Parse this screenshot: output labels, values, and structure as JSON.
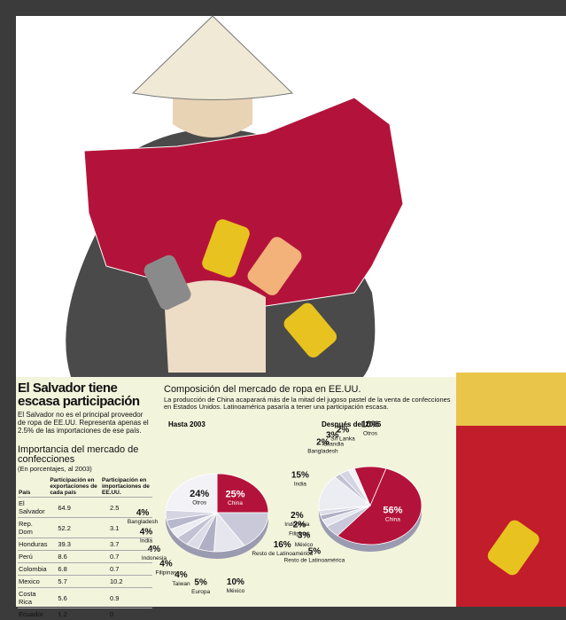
{
  "sidebar": {
    "title": "El Salvador tiene escasa participación",
    "text": "El Salvador no es el principal proveedor de ropa de EE.UU. Representa apenas el 2.5% de las importaciones de ese país.",
    "table_title": "Importancia del mercado de confecciones",
    "table_note": "(En porcentajes, al 2003)"
  },
  "table": {
    "header": [
      "País",
      "Participación en exportaciones de cada país",
      "Participación en importaciones de EE.UU."
    ],
    "rows": [
      [
        "El Salvador",
        64.9,
        2.5
      ],
      [
        "Rep. Dom",
        52.2,
        3.1
      ],
      [
        "Honduras",
        39.3,
        3.7
      ],
      [
        "Perú",
        8.6,
        0.7
      ],
      [
        "Colombia",
        6.8,
        0.7
      ],
      [
        "Mexico",
        5.7,
        10.2
      ],
      [
        "Costa Rica",
        5.6,
        0.9
      ],
      [
        "Ecuador",
        1.2,
        0
      ]
    ]
  },
  "main": {
    "title": "Composición del mercado de ropa en EE.UU.",
    "text": "La producción de China acaparará más de la mitad del jugoso pastel de la venta de confecciones en Estados Unidos. Latinoamérica pasaría a tener una participación escasa."
  },
  "chart_data": [
    {
      "type": "pie",
      "title": "Hasta 2003",
      "categories": [
        "China",
        "Resto de Latinoamérica",
        "México",
        "Europa",
        "Taiwan",
        "Filipinas",
        "Indonesia",
        "India",
        "Bangladesh",
        "Otros"
      ],
      "values": [
        25,
        16,
        10,
        5,
        4,
        4,
        4,
        4,
        4,
        24
      ],
      "value_labels": [
        "25%",
        "16%",
        "10%",
        "5%",
        "4%",
        "4%",
        "4%",
        "4%",
        "4%",
        "24%"
      ],
      "colors": [
        "#b3133a",
        "#c9c9d9",
        "#e6e6ef",
        "#b0b0c4",
        "#dcdce8",
        "#c2c2d4",
        "#ececf3",
        "#b8b8cc",
        "#d4d4e2",
        "#f3f3f7"
      ]
    },
    {
      "type": "pie",
      "title": "Después del 2005",
      "categories": [
        "Otros",
        "China",
        "Resto de Latinoamérica",
        "México",
        "Filipinas",
        "Indonesia",
        "India",
        "Bangladesh",
        "Tailandia",
        "Sri Lanka"
      ],
      "values": [
        10,
        56,
        5,
        3,
        2,
        2,
        15,
        2,
        3,
        2
      ],
      "value_labels": [
        "10%",
        "56%",
        "5%",
        "3%",
        "2%",
        "2%",
        "15%",
        "2%",
        "3%",
        "2%"
      ],
      "colors": [
        "#b3133a",
        "#b3133a",
        "#c9c9d9",
        "#e6e6ef",
        "#b0b0c4",
        "#dcdce8",
        "#ececf3",
        "#c2c2d4",
        "#d4d4e2",
        "#f3f3f7"
      ]
    }
  ]
}
